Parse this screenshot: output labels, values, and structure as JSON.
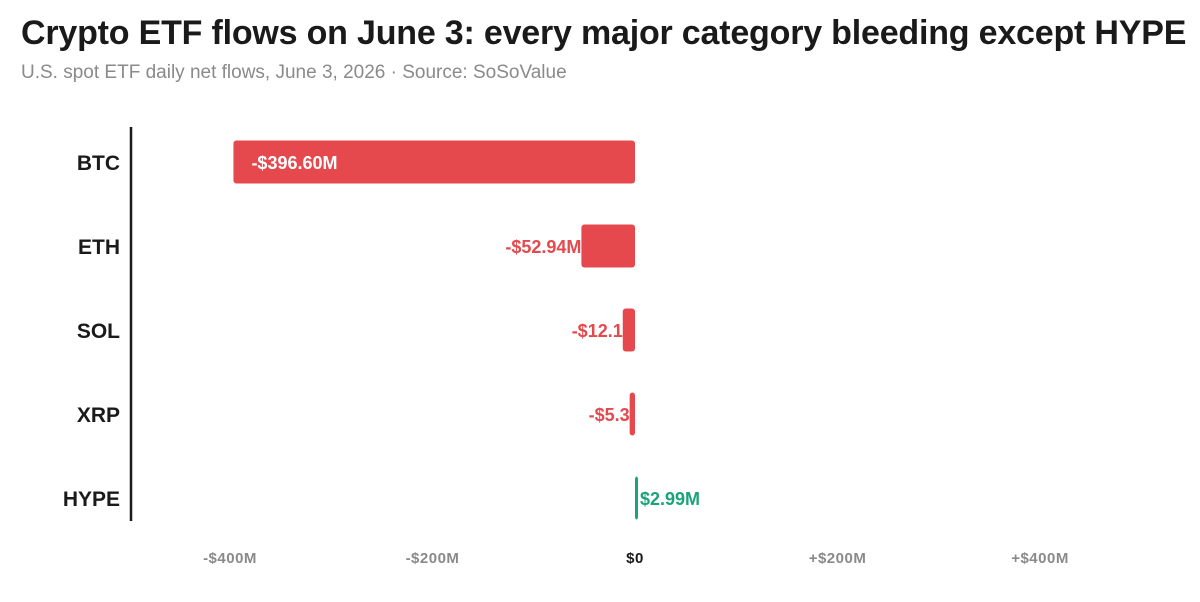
{
  "header": {
    "title": "Crypto ETF flows on June 3: every major category bleeding except HYPE",
    "subtitle": "U.S. spot ETF daily net flows, June 3, 2026 · Source: SoSoValue"
  },
  "colors": {
    "negative": "#e5484d",
    "positive": "#1ba37a",
    "axis": "#1a1a1a",
    "tick": "#8a8a8a"
  },
  "chart_data": {
    "type": "bar",
    "orientation": "horizontal",
    "categories": [
      "BTC",
      "ETH",
      "SOL",
      "XRP",
      "HYPE"
    ],
    "values": [
      -396.6,
      -52.94,
      -12.1,
      -5.3,
      2.99
    ],
    "value_labels": [
      "-$396.60M",
      "-$52.94M",
      "-$12.1",
      "-$5.3",
      "$2.99M"
    ],
    "xlim": [
      -500,
      500
    ],
    "xticks": [
      {
        "value": -400,
        "label": "-$400M"
      },
      {
        "value": -200,
        "label": "-$200M"
      },
      {
        "value": 0,
        "label": "$0"
      },
      {
        "value": 200,
        "label": "+$200M"
      },
      {
        "value": 400,
        "label": "+$400M"
      }
    ],
    "grid": false,
    "legend": "none"
  }
}
